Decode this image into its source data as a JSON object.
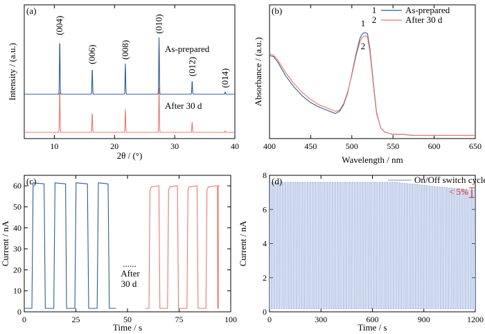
{
  "colors": {
    "blue": "#2f5d8e",
    "red": "#e8786d",
    "light_blue": "#8fa8d8",
    "axis": "#000000",
    "marker_red": "#d02020"
  },
  "chart_data": [
    {
      "panel": "(a)",
      "type": "line",
      "xlabel": "2θ / (°)",
      "ylabel": "Intensity / (a.u.)",
      "xlim": [
        5,
        40
      ],
      "x_ticks": [
        10,
        20,
        30,
        40
      ],
      "y_ticks_shown": false,
      "series": [
        {
          "name": "As-prepared",
          "color": "#2f5d8e",
          "baseline": 0.5,
          "peaks": [
            {
              "x": 10.9,
              "h": 0.72,
              "label": "(004)"
            },
            {
              "x": 16.3,
              "h": 0.34,
              "label": "(006)"
            },
            {
              "x": 21.8,
              "h": 0.4,
              "label": "(008)"
            },
            {
              "x": 27.4,
              "h": 0.74,
              "label": "(010)"
            },
            {
              "x": 32.9,
              "h": 0.18,
              "label": "(012)"
            },
            {
              "x": 38.4,
              "h": 0.03,
              "label": "(014)"
            }
          ]
        },
        {
          "name": "After 30 d",
          "color": "#e8786d",
          "baseline": 0.0,
          "peaks": [
            {
              "x": 10.9,
              "h": 0.56
            },
            {
              "x": 16.3,
              "h": 0.26
            },
            {
              "x": 21.8,
              "h": 0.3
            },
            {
              "x": 27.4,
              "h": 0.58
            },
            {
              "x": 32.9,
              "h": 0.14
            },
            {
              "x": 38.4,
              "h": 0.02
            }
          ]
        }
      ],
      "annotations": [
        "As-prepared",
        "After 30 d"
      ]
    },
    {
      "panel": "(b)",
      "type": "line",
      "xlabel": "Wavelength / nm",
      "ylabel": "Absorbance / (a.u.)",
      "xlim": [
        400,
        650
      ],
      "x_ticks": [
        400,
        450,
        500,
        550,
        600,
        650
      ],
      "y_ticks_shown": false,
      "legend": {
        "placement": "top-right",
        "entries": [
          {
            "num": "1",
            "name": "As-prepared"
          },
          {
            "num": "2",
            "name": "After 30 d"
          }
        ]
      },
      "series": [
        {
          "name": "As-prepared",
          "color": "#2f5d8e",
          "x": [
            400,
            405,
            410,
            420,
            430,
            440,
            450,
            460,
            470,
            480,
            485,
            490,
            495,
            500,
            505,
            510,
            513,
            516,
            519,
            522,
            526,
            530,
            535,
            540,
            545,
            550,
            560,
            575,
            600,
            625,
            650
          ],
          "y": [
            0.74,
            0.73,
            0.68,
            0.55,
            0.45,
            0.37,
            0.31,
            0.27,
            0.24,
            0.21,
            0.23,
            0.29,
            0.4,
            0.57,
            0.75,
            0.9,
            0.94,
            0.95,
            0.94,
            0.8,
            0.5,
            0.22,
            0.08,
            0.04,
            0.03,
            0.02,
            0.02,
            0.01,
            0.01,
            0.01,
            0.01
          ]
        },
        {
          "name": "After 30 d",
          "color": "#e8786d",
          "x": [
            400,
            405,
            410,
            420,
            430,
            440,
            450,
            460,
            470,
            480,
            485,
            490,
            495,
            500,
            505,
            510,
            513,
            516,
            519,
            522,
            526,
            530,
            535,
            540,
            545,
            550,
            560,
            575,
            600,
            625,
            650
          ],
          "y": [
            0.76,
            0.74,
            0.7,
            0.58,
            0.48,
            0.4,
            0.34,
            0.29,
            0.26,
            0.23,
            0.24,
            0.3,
            0.41,
            0.56,
            0.73,
            0.87,
            0.91,
            0.92,
            0.91,
            0.77,
            0.48,
            0.21,
            0.08,
            0.04,
            0.03,
            0.02,
            0.02,
            0.01,
            0.01,
            0.01,
            0.01
          ]
        }
      ],
      "annotations": [
        "1",
        "2"
      ]
    },
    {
      "panel": "(c)",
      "type": "line",
      "xlabel": "Time / s",
      "ylabel": "Current / nA",
      "xlim": [
        0,
        100
      ],
      "ylim": [
        0,
        65
      ],
      "x_ticks": [
        0,
        25,
        50,
        75,
        100
      ],
      "y_ticks": [
        0,
        10,
        20,
        30,
        40,
        50,
        60
      ],
      "series": [
        {
          "name": "As-prepared",
          "color": "#2f5d8e",
          "x": [
            0,
            3.7,
            4.6,
            7.4,
            8.3,
            12.4,
            13.3,
            16.7,
            21.6,
            23.3,
            26.0,
            30.9,
            32.6,
            36.6,
            40.5,
            42.4
          ],
          "y": [
            0,
            0,
            61,
            61,
            0,
            0,
            61,
            61,
            0,
            0,
            61,
            61,
            0,
            0,
            61,
            61
          ]
        },
        {
          "name": "After 30 d",
          "color": "#e8786d",
          "x": [
            58,
            60.5,
            61,
            64,
            65,
            69,
            70,
            73,
            74,
            78,
            79,
            82,
            83,
            87,
            88,
            91,
            92,
            96
          ],
          "y": [
            0,
            0,
            58,
            60,
            0,
            0,
            58,
            60,
            0,
            0,
            58,
            60,
            0,
            0,
            58,
            60,
            0,
            60
          ]
        }
      ],
      "annotations": [
        "......",
        "After",
        "30 d"
      ]
    },
    {
      "panel": "(d)",
      "type": "line",
      "xlabel": "Time / s",
      "ylabel": "Current / nA",
      "xlim": [
        0,
        1200
      ],
      "ylim": [
        0,
        8
      ],
      "x_ticks": [
        0,
        300,
        600,
        900,
        1200
      ],
      "y_ticks": [
        0,
        2.0,
        4.0,
        6.0,
        8.0
      ],
      "series": [
        {
          "name": "On/Off switch cycles",
          "color": "#8fa8d8",
          "period": 14.5,
          "duty": 0.5,
          "max_start": 7.55,
          "max_end": 7.05,
          "min": 0.02
        }
      ],
      "legend": {
        "placement": "top-right",
        "entries": [
          {
            "name": "On/Off switch cycles"
          }
        ]
      },
      "annotations": [
        "< 5%"
      ]
    }
  ]
}
